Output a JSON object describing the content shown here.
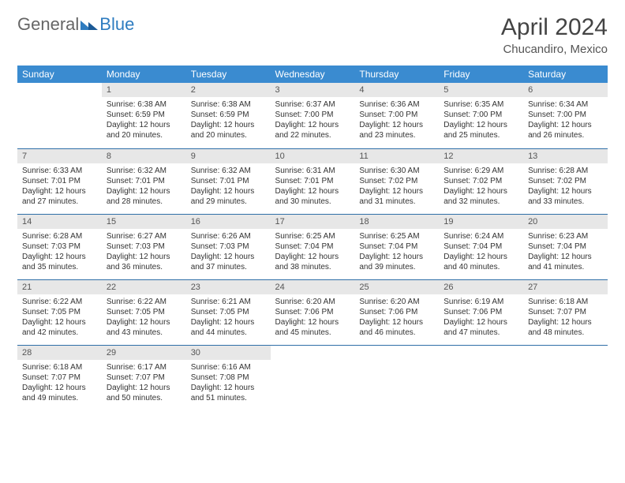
{
  "brand": {
    "part1": "General",
    "part2": "Blue"
  },
  "title": {
    "month": "April 2024",
    "location": "Chucandiro, Mexico"
  },
  "colors": {
    "header_bg": "#3a8bd0",
    "header_text": "#ffffff",
    "daynum_bg": "#e7e7e7",
    "row_divider": "#2f6fa8",
    "brand_blue": "#2e7cc0",
    "brand_gray": "#666666"
  },
  "weekdays": [
    "Sunday",
    "Monday",
    "Tuesday",
    "Wednesday",
    "Thursday",
    "Friday",
    "Saturday"
  ],
  "weeks": [
    [
      {
        "empty": true
      },
      {
        "d": "1",
        "sr": "Sunrise: 6:38 AM",
        "ss": "Sunset: 6:59 PM",
        "dl1": "Daylight: 12 hours",
        "dl2": "and 20 minutes."
      },
      {
        "d": "2",
        "sr": "Sunrise: 6:38 AM",
        "ss": "Sunset: 6:59 PM",
        "dl1": "Daylight: 12 hours",
        "dl2": "and 20 minutes."
      },
      {
        "d": "3",
        "sr": "Sunrise: 6:37 AM",
        "ss": "Sunset: 7:00 PM",
        "dl1": "Daylight: 12 hours",
        "dl2": "and 22 minutes."
      },
      {
        "d": "4",
        "sr": "Sunrise: 6:36 AM",
        "ss": "Sunset: 7:00 PM",
        "dl1": "Daylight: 12 hours",
        "dl2": "and 23 minutes."
      },
      {
        "d": "5",
        "sr": "Sunrise: 6:35 AM",
        "ss": "Sunset: 7:00 PM",
        "dl1": "Daylight: 12 hours",
        "dl2": "and 25 minutes."
      },
      {
        "d": "6",
        "sr": "Sunrise: 6:34 AM",
        "ss": "Sunset: 7:00 PM",
        "dl1": "Daylight: 12 hours",
        "dl2": "and 26 minutes."
      }
    ],
    [
      {
        "d": "7",
        "sr": "Sunrise: 6:33 AM",
        "ss": "Sunset: 7:01 PM",
        "dl1": "Daylight: 12 hours",
        "dl2": "and 27 minutes."
      },
      {
        "d": "8",
        "sr": "Sunrise: 6:32 AM",
        "ss": "Sunset: 7:01 PM",
        "dl1": "Daylight: 12 hours",
        "dl2": "and 28 minutes."
      },
      {
        "d": "9",
        "sr": "Sunrise: 6:32 AM",
        "ss": "Sunset: 7:01 PM",
        "dl1": "Daylight: 12 hours",
        "dl2": "and 29 minutes."
      },
      {
        "d": "10",
        "sr": "Sunrise: 6:31 AM",
        "ss": "Sunset: 7:01 PM",
        "dl1": "Daylight: 12 hours",
        "dl2": "and 30 minutes."
      },
      {
        "d": "11",
        "sr": "Sunrise: 6:30 AM",
        "ss": "Sunset: 7:02 PM",
        "dl1": "Daylight: 12 hours",
        "dl2": "and 31 minutes."
      },
      {
        "d": "12",
        "sr": "Sunrise: 6:29 AM",
        "ss": "Sunset: 7:02 PM",
        "dl1": "Daylight: 12 hours",
        "dl2": "and 32 minutes."
      },
      {
        "d": "13",
        "sr": "Sunrise: 6:28 AM",
        "ss": "Sunset: 7:02 PM",
        "dl1": "Daylight: 12 hours",
        "dl2": "and 33 minutes."
      }
    ],
    [
      {
        "d": "14",
        "sr": "Sunrise: 6:28 AM",
        "ss": "Sunset: 7:03 PM",
        "dl1": "Daylight: 12 hours",
        "dl2": "and 35 minutes."
      },
      {
        "d": "15",
        "sr": "Sunrise: 6:27 AM",
        "ss": "Sunset: 7:03 PM",
        "dl1": "Daylight: 12 hours",
        "dl2": "and 36 minutes."
      },
      {
        "d": "16",
        "sr": "Sunrise: 6:26 AM",
        "ss": "Sunset: 7:03 PM",
        "dl1": "Daylight: 12 hours",
        "dl2": "and 37 minutes."
      },
      {
        "d": "17",
        "sr": "Sunrise: 6:25 AM",
        "ss": "Sunset: 7:04 PM",
        "dl1": "Daylight: 12 hours",
        "dl2": "and 38 minutes."
      },
      {
        "d": "18",
        "sr": "Sunrise: 6:25 AM",
        "ss": "Sunset: 7:04 PM",
        "dl1": "Daylight: 12 hours",
        "dl2": "and 39 minutes."
      },
      {
        "d": "19",
        "sr": "Sunrise: 6:24 AM",
        "ss": "Sunset: 7:04 PM",
        "dl1": "Daylight: 12 hours",
        "dl2": "and 40 minutes."
      },
      {
        "d": "20",
        "sr": "Sunrise: 6:23 AM",
        "ss": "Sunset: 7:04 PM",
        "dl1": "Daylight: 12 hours",
        "dl2": "and 41 minutes."
      }
    ],
    [
      {
        "d": "21",
        "sr": "Sunrise: 6:22 AM",
        "ss": "Sunset: 7:05 PM",
        "dl1": "Daylight: 12 hours",
        "dl2": "and 42 minutes."
      },
      {
        "d": "22",
        "sr": "Sunrise: 6:22 AM",
        "ss": "Sunset: 7:05 PM",
        "dl1": "Daylight: 12 hours",
        "dl2": "and 43 minutes."
      },
      {
        "d": "23",
        "sr": "Sunrise: 6:21 AM",
        "ss": "Sunset: 7:05 PM",
        "dl1": "Daylight: 12 hours",
        "dl2": "and 44 minutes."
      },
      {
        "d": "24",
        "sr": "Sunrise: 6:20 AM",
        "ss": "Sunset: 7:06 PM",
        "dl1": "Daylight: 12 hours",
        "dl2": "and 45 minutes."
      },
      {
        "d": "25",
        "sr": "Sunrise: 6:20 AM",
        "ss": "Sunset: 7:06 PM",
        "dl1": "Daylight: 12 hours",
        "dl2": "and 46 minutes."
      },
      {
        "d": "26",
        "sr": "Sunrise: 6:19 AM",
        "ss": "Sunset: 7:06 PM",
        "dl1": "Daylight: 12 hours",
        "dl2": "and 47 minutes."
      },
      {
        "d": "27",
        "sr": "Sunrise: 6:18 AM",
        "ss": "Sunset: 7:07 PM",
        "dl1": "Daylight: 12 hours",
        "dl2": "and 48 minutes."
      }
    ],
    [
      {
        "d": "28",
        "sr": "Sunrise: 6:18 AM",
        "ss": "Sunset: 7:07 PM",
        "dl1": "Daylight: 12 hours",
        "dl2": "and 49 minutes."
      },
      {
        "d": "29",
        "sr": "Sunrise: 6:17 AM",
        "ss": "Sunset: 7:07 PM",
        "dl1": "Daylight: 12 hours",
        "dl2": "and 50 minutes."
      },
      {
        "d": "30",
        "sr": "Sunrise: 6:16 AM",
        "ss": "Sunset: 7:08 PM",
        "dl1": "Daylight: 12 hours",
        "dl2": "and 51 minutes."
      },
      {
        "empty": true
      },
      {
        "empty": true
      },
      {
        "empty": true
      },
      {
        "empty": true
      }
    ]
  ]
}
